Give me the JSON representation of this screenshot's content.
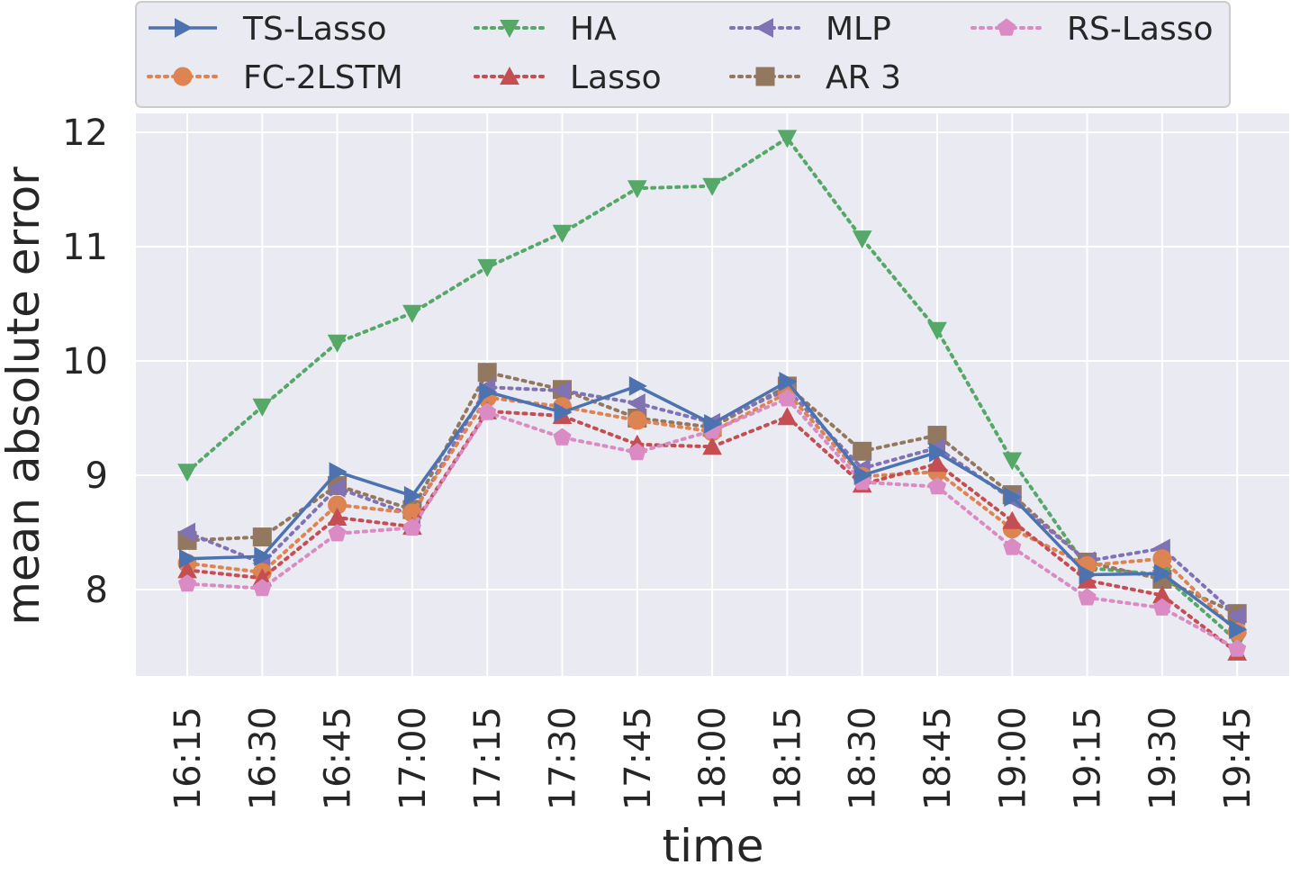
{
  "chart_data": {
    "type": "line",
    "title": "",
    "xlabel": "time",
    "ylabel": "mean absolute error",
    "categories": [
      "16:15",
      "16:30",
      "16:45",
      "17:00",
      "17:15",
      "17:30",
      "17:45",
      "18:00",
      "18:15",
      "18:30",
      "18:45",
      "19:00",
      "19:15",
      "19:30",
      "19:45"
    ],
    "ylim": [
      7.3,
      12.2
    ],
    "yticks": [
      8,
      9,
      10,
      11,
      12
    ],
    "grid": true,
    "legend_position": "top",
    "series": [
      {
        "name": "TS-Lasso",
        "color": "#4c72b0",
        "marker": "triangle-right",
        "style": "solid",
        "values": [
          8.27,
          8.29,
          9.03,
          8.82,
          9.73,
          9.55,
          9.78,
          9.45,
          9.82,
          9.0,
          9.2,
          8.81,
          8.13,
          8.14,
          7.65
        ]
      },
      {
        "name": "FC-2LSTM",
        "color": "#dd8452",
        "marker": "circle",
        "style": "dotted",
        "values": [
          8.23,
          8.15,
          8.74,
          8.67,
          9.68,
          9.6,
          9.48,
          9.38,
          9.72,
          8.99,
          9.03,
          8.53,
          8.21,
          8.27,
          7.63
        ]
      },
      {
        "name": "HA",
        "color": "#55a868",
        "marker": "triangle-down",
        "style": "dotted",
        "values": [
          9.03,
          9.6,
          10.16,
          10.42,
          10.82,
          11.12,
          11.51,
          11.53,
          11.95,
          11.07,
          10.27,
          9.13,
          8.19,
          8.13,
          7.55
        ]
      },
      {
        "name": "Lasso",
        "color": "#c44e52",
        "marker": "triangle-up",
        "style": "dotted",
        "values": [
          8.17,
          8.1,
          8.63,
          8.55,
          9.56,
          9.52,
          9.27,
          9.25,
          9.51,
          8.92,
          9.1,
          8.6,
          8.08,
          7.95,
          7.45
        ]
      },
      {
        "name": "MLP",
        "color": "#8172b3",
        "marker": "triangle-left",
        "style": "dotted",
        "values": [
          8.5,
          8.23,
          8.89,
          8.65,
          9.77,
          9.74,
          9.63,
          9.46,
          9.75,
          9.06,
          9.24,
          8.79,
          8.25,
          8.36,
          7.77
        ]
      },
      {
        "name": "AR 3",
        "color": "#937860",
        "marker": "square",
        "style": "dotted",
        "values": [
          8.43,
          8.46,
          8.91,
          8.7,
          9.9,
          9.75,
          9.5,
          9.42,
          9.78,
          9.21,
          9.35,
          8.83,
          8.24,
          8.09,
          7.79
        ]
      },
      {
        "name": "RS-Lasso",
        "color": "#da8bc3",
        "marker": "pentagon",
        "style": "dotted",
        "values": [
          8.05,
          8.01,
          8.49,
          8.54,
          9.55,
          9.33,
          9.2,
          9.39,
          9.67,
          8.94,
          8.9,
          8.37,
          7.93,
          7.84,
          7.48
        ]
      }
    ]
  }
}
